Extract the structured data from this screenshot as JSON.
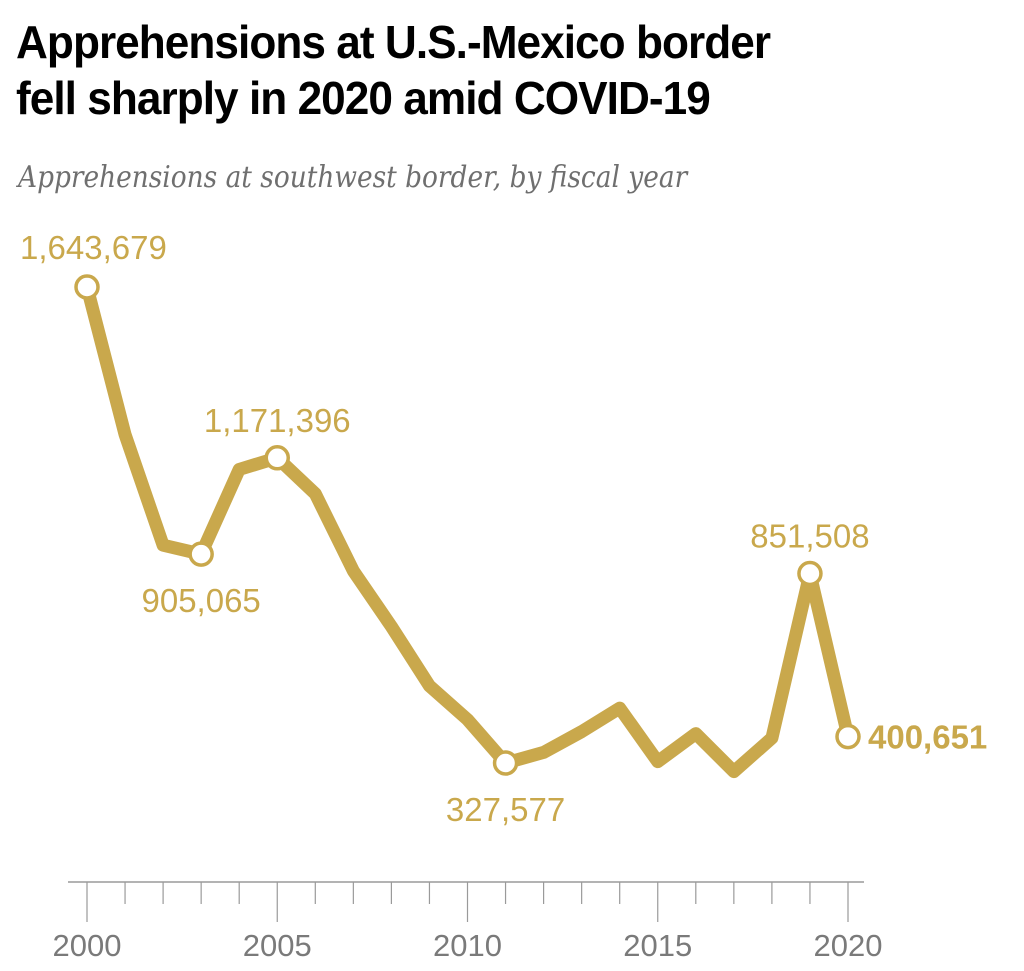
{
  "header": {
    "title_line1": "Apprehensions at U.S.-Mexico border",
    "title_line2": "fell sharply in 2020 amid COVID-19",
    "subtitle": "Apprehensions at southwest border, by fiscal year"
  },
  "colors": {
    "line": "#c9a84c",
    "label": "#c9a84c",
    "axis": "#9a9a9a",
    "tick_label": "#7a7a7a",
    "title": "#000000",
    "subtitle": "#6f6f6f"
  },
  "chart_data": {
    "type": "line",
    "title": "Apprehensions at U.S.-Mexico border fell sharply in 2020 amid COVID-19",
    "subtitle": "Apprehensions at southwest border, by fiscal year",
    "xlabel": "",
    "ylabel": "",
    "x": [
      2000,
      2001,
      2002,
      2003,
      2004,
      2005,
      2006,
      2007,
      2008,
      2009,
      2010,
      2011,
      2012,
      2013,
      2014,
      2015,
      2016,
      2017,
      2018,
      2019,
      2020
    ],
    "series": [
      {
        "name": "Apprehensions",
        "values": [
          1643679,
          1235718,
          929809,
          905065,
          1139282,
          1171396,
          1071972,
          858638,
          705005,
          540865,
          447731,
          327577,
          356873,
          414397,
          479371,
          331333,
          408870,
          303916,
          396579,
          851508,
          400651
        ]
      }
    ],
    "annotations": [
      {
        "year": 2000,
        "text": "1,643,679",
        "position": "above",
        "bold": false
      },
      {
        "year": 2003,
        "text": "905,065",
        "position": "below",
        "bold": false
      },
      {
        "year": 2005,
        "text": "1,171,396",
        "position": "above",
        "bold": false
      },
      {
        "year": 2011,
        "text": "327,577",
        "position": "below",
        "bold": false
      },
      {
        "year": 2019,
        "text": "851,508",
        "position": "above",
        "bold": false
      },
      {
        "year": 2020,
        "text": "400,651",
        "position": "right",
        "bold": true
      }
    ],
    "xticks": [
      2000,
      2005,
      2010,
      2015,
      2020
    ],
    "xtick_labels": [
      "2000",
      "2005",
      "2010",
      "2015",
      "2020"
    ],
    "minor_ticks_every": 1,
    "xlim": [
      2000,
      2020
    ],
    "ylim": [
      0,
      1643679
    ],
    "grid": false,
    "legend": "none"
  }
}
